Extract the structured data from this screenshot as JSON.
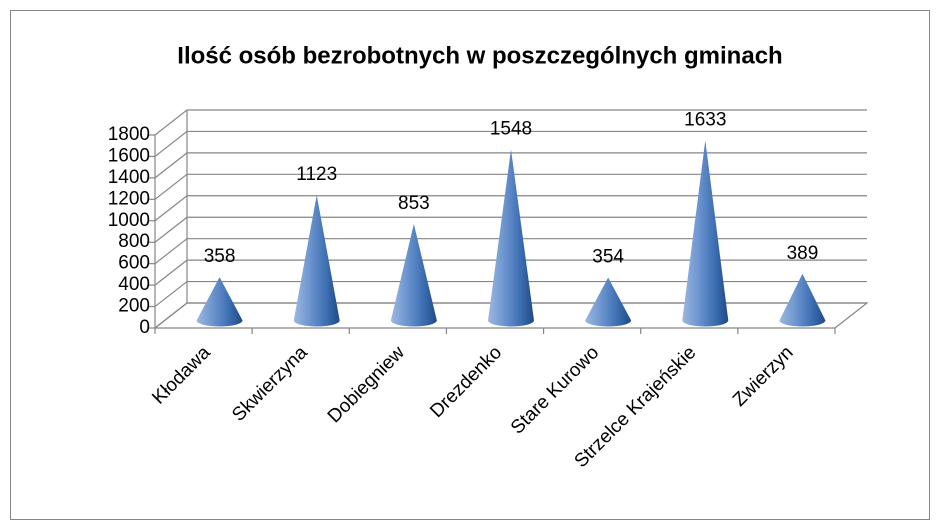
{
  "chart_data": {
    "type": "cone3d",
    "title": "Ilość osób bezrobotnych w  poszczególnych gminach",
    "categories": [
      "Kłodawa",
      "Skwierzyna",
      "Dobiegniew",
      "Drezdenko",
      "Stare Kurowo",
      "Strzelce Krajeńskie",
      "Zwierzyn"
    ],
    "values": [
      358,
      1123,
      853,
      1548,
      354,
      1633,
      389
    ],
    "color": "#4f81bd",
    "ylim": [
      0,
      1800
    ],
    "yticks": [
      0,
      200,
      400,
      600,
      800,
      1000,
      1200,
      1400,
      1600,
      1800
    ],
    "grid": true
  }
}
